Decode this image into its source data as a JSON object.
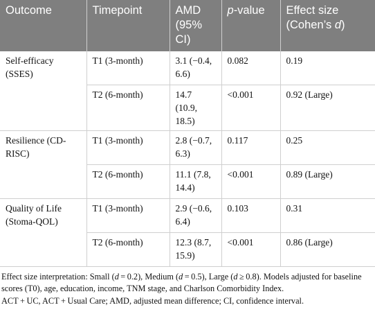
{
  "table": {
    "header": [
      "Outcome",
      "Timepoint",
      "AMD (95% CI)",
      [
        {
          "text": "p",
          "italic": true
        },
        {
          "text": "-value"
        }
      ],
      [
        {
          "text": "Effect size (Cohen’s "
        },
        {
          "text": "d",
          "italic": true
        },
        {
          "text": ")"
        }
      ]
    ],
    "groups": [
      {
        "outcome": "Self-efficacy (SSES)",
        "rows": [
          [
            "T1 (3-month)",
            "3.1 (−0.4, 6.6)",
            "0.082",
            "0.19"
          ],
          [
            "T2 (6-month)",
            "14.7 (10.9, 18.5)",
            "<0.001",
            "0.92 (Large)"
          ]
        ]
      },
      {
        "outcome": "Resilience (CD-RISC)",
        "rows": [
          [
            "T1 (3-month)",
            "2.8 (−0.7, 6.3)",
            "0.117",
            "0.25"
          ],
          [
            "T2 (6-month)",
            "11.1 (7.8, 14.4)",
            "<0.001",
            "0.89 (Large)"
          ]
        ]
      },
      {
        "outcome": "Quality of Life (Stoma-QOL)",
        "rows": [
          [
            "T1 (3-month)",
            "2.9 (−0.6, 6.4)",
            "0.103",
            "0.31"
          ],
          [
            "T2 (6-month)",
            "12.3 (8.7, 15.9)",
            "<0.001",
            "0.86 (Large)"
          ]
        ]
      }
    ]
  },
  "notes": [
    [
      {
        "text": "Effect size interpretation: Small ("
      },
      {
        "text": "d",
        "italic": true
      },
      {
        "text": " = 0.2), Medium ("
      },
      {
        "text": "d",
        "italic": true
      },
      {
        "text": " = 0.5), Large ("
      },
      {
        "text": "d",
        "italic": true
      },
      {
        "text": " ≥ 0.8). Models adjusted for baseline scores (T0), age, education, income, TNM stage, and Charlson Comorbidity Index."
      }
    ],
    "ACT + UC, ACT + Usual Care; AMD, adjusted mean difference; CI, confidence interval."
  ]
}
